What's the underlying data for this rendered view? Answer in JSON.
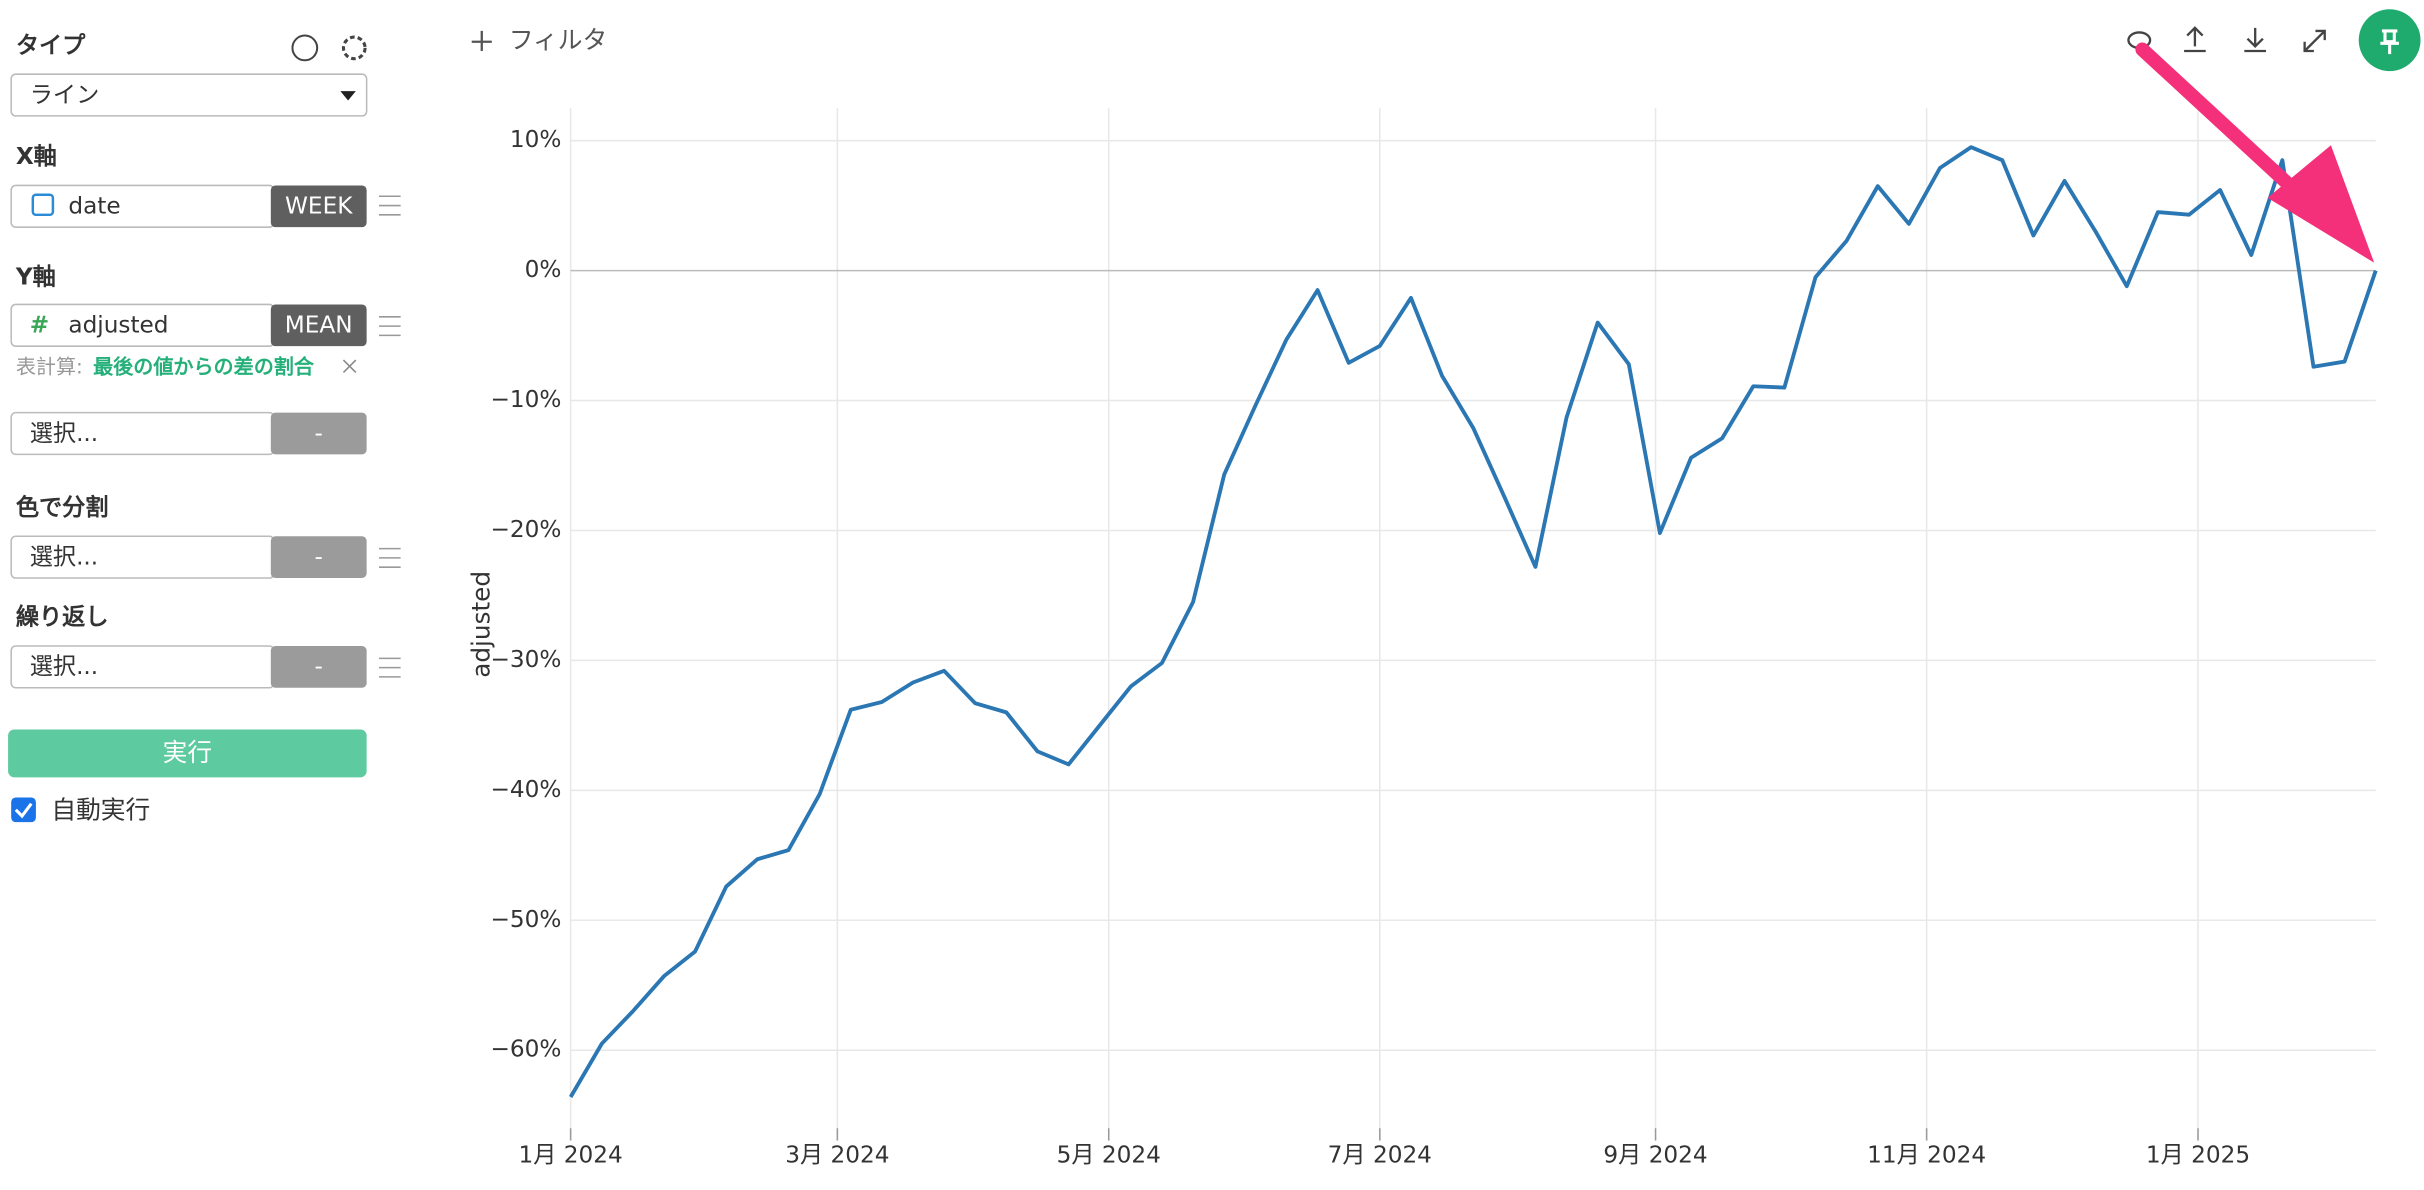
{
  "toolbar": {
    "filter": "フィルタ"
  },
  "sidebar": {
    "type_label": "タイプ",
    "type_value": "ライン",
    "x_axis_label": "X軸",
    "x_field": "date",
    "x_agg": "WEEK",
    "y_axis_label": "Y軸",
    "y_field": "adjusted",
    "y_agg": "MEAN",
    "calc_label": "表計算:",
    "calc_value": "最後の値からの差の割合",
    "extra_select": "選択...",
    "extra_agg": "-",
    "color_label": "色で分割",
    "color_select": "選択...",
    "color_agg": "-",
    "repeat_label": "繰り返し",
    "repeat_select": "選択...",
    "repeat_agg": "-",
    "run": "実行",
    "auto_run": "自動実行"
  },
  "chart_data": {
    "type": "line",
    "ylabel": "adjusted",
    "color": "#2a77b4",
    "values": [
      -63.6,
      -59.5,
      -57,
      -54.3,
      -52.4,
      -47.4,
      -45.3,
      -44.6,
      -40.3,
      -33.8,
      -33.2,
      -31.7,
      -30.8,
      -33.3,
      -34,
      -37,
      -38,
      -35,
      -32,
      -30.2,
      -25.5,
      -15.7,
      -10.4,
      -5.3,
      -1.5,
      -7.1,
      -5.8,
      -2.1,
      -8.1,
      -12.1,
      -17.4,
      -22.8,
      -11.3,
      -4,
      -7.2,
      -20.2,
      -14.4,
      -12.9,
      -8.9,
      -9,
      -0.5,
      2.3,
      6.5,
      3.6,
      7.9,
      9.5,
      8.5,
      2.7,
      6.9,
      3,
      -1.2,
      4.5,
      4.3,
      6.2,
      1.2,
      8.5,
      -7.4,
      -7,
      0
    ],
    "xlim": [
      0,
      58
    ],
    "xticks": [
      {
        "value": 0,
        "label": "1月 2024"
      },
      {
        "value": 8.57,
        "label": "3月 2024"
      },
      {
        "value": 17.29,
        "label": "5月 2024"
      },
      {
        "value": 26,
        "label": "7月 2024"
      },
      {
        "value": 34.86,
        "label": "9月 2024"
      },
      {
        "value": 43.57,
        "label": "11月 2024"
      },
      {
        "value": 52.29,
        "label": "1月 2025"
      }
    ],
    "ylim": [
      -66,
      12.5
    ],
    "yticks": [
      {
        "value": 10,
        "label": "10%"
      },
      {
        "value": 0,
        "label": "0%"
      },
      {
        "value": -10,
        "label": "−10%"
      },
      {
        "value": -20,
        "label": "−20%"
      },
      {
        "value": -30,
        "label": "−30%"
      },
      {
        "value": -40,
        "label": "−40%"
      },
      {
        "value": -50,
        "label": "−50%"
      },
      {
        "value": -60,
        "label": "−60%"
      }
    ],
    "grid": true
  }
}
